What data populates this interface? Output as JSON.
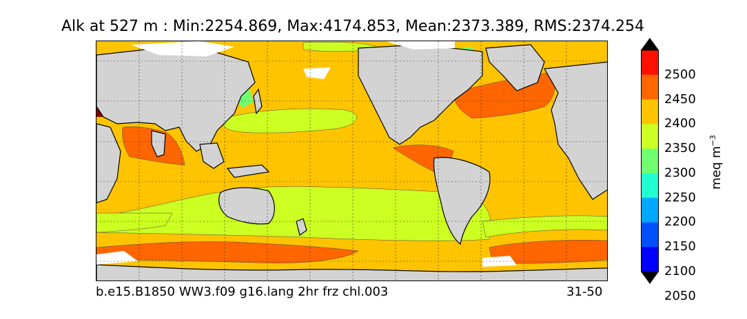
{
  "title": "Alk at 527 m : Min:2254.869, Max:4174.853, Mean:2373.389, RMS:2374.254",
  "footer": {
    "left": "b.e15.B1850 WW3.f09 g16.lang 2hr frz chl.003",
    "right": "31-50"
  },
  "colorbar": {
    "unit_main": "meq m",
    "unit_exp": "−3",
    "ticks": [
      "2500",
      "2450",
      "2400",
      "2350",
      "2300",
      "2250",
      "2200",
      "2150",
      "2100",
      "2050"
    ],
    "colors": [
      "#000080",
      "#0000ff",
      "#0050ff",
      "#00a8ff",
      "#20ffd0",
      "#70ff70",
      "#ccff22",
      "#ffc400",
      "#ff6600",
      "#ff1100",
      "#800000"
    ]
  },
  "chart_data": {
    "type": "heatmap",
    "title": "Alk at 527 m : Min:2254.869, Max:4174.853, Mean:2373.389, RMS:2374.254",
    "variable": "Alk",
    "depth": "527 m",
    "stats": {
      "min": 2254.869,
      "max": 4174.853,
      "mean": 2373.389,
      "rms": 2374.254
    },
    "colorbar_label": "meq m^-3",
    "levels": [
      2050,
      2100,
      2150,
      2200,
      2250,
      2300,
      2350,
      2400,
      2450,
      2500
    ],
    "extend": "both",
    "legend_placement": "right",
    "grid": true,
    "annotations": [
      "b.e15.B1850 WW3.f09 g16.lang 2hr frz chl.003",
      "31-50"
    ]
  }
}
